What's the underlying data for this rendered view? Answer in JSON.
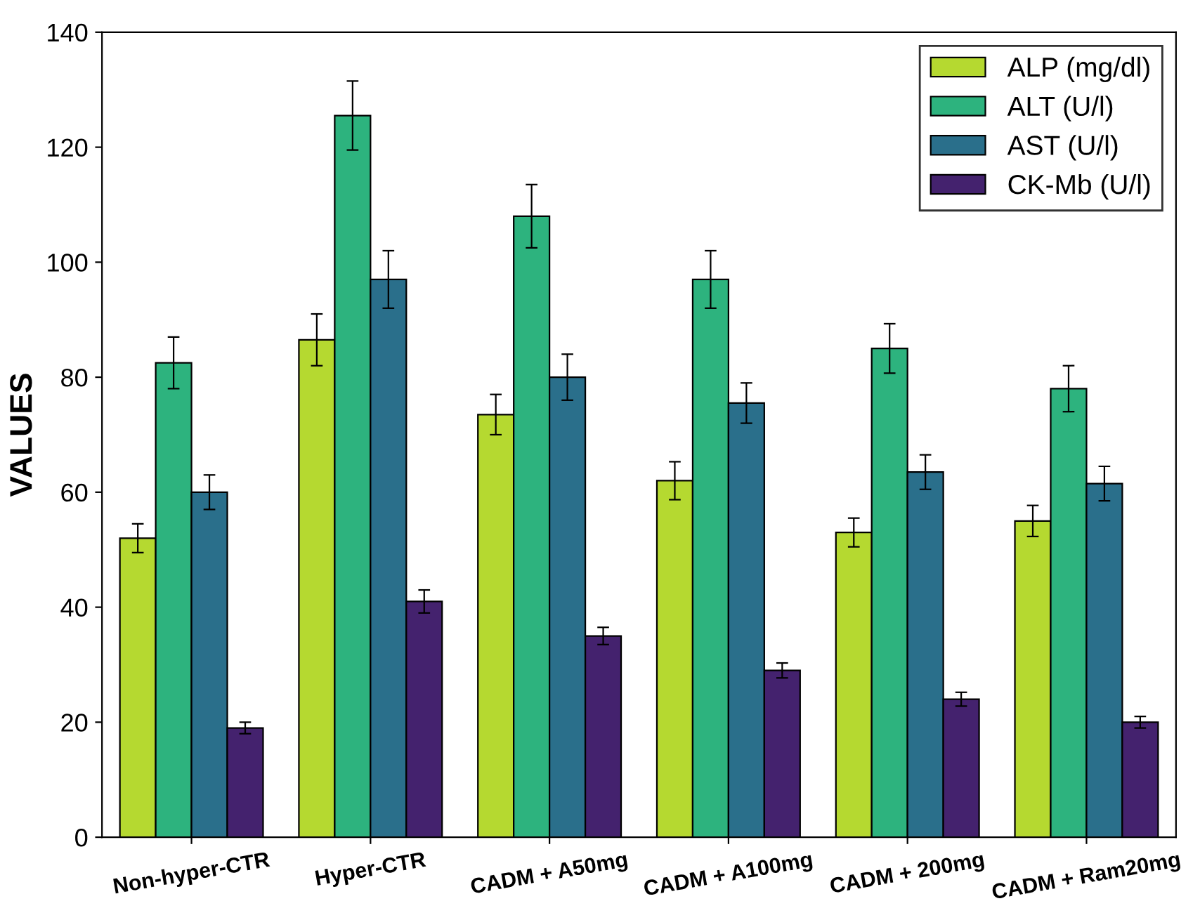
{
  "chart_data": {
    "type": "bar",
    "ylabel": "VALUES",
    "categories": [
      "Non-hyper-CTR",
      "Hyper-CTR",
      "CADM + A50mg",
      "CADM + A100mg",
      "CADM + 200mg",
      "CADM + Ram20mg"
    ],
    "series": [
      {
        "name": "ALP (mg/dl)",
        "color": "#b5d930",
        "values": [
          52,
          86.5,
          73.5,
          62,
          53,
          55
        ],
        "errors": [
          2.5,
          4.5,
          3.5,
          3.3,
          2.5,
          2.7
        ]
      },
      {
        "name": "ALT (U/l)",
        "color": "#2db37e",
        "values": [
          82.5,
          125.5,
          108,
          97,
          85,
          78
        ],
        "errors": [
          4.5,
          6,
          5.5,
          5,
          4.3,
          4
        ]
      },
      {
        "name": "AST (U/l)",
        "color": "#2a6f8b",
        "values": [
          60,
          97,
          80,
          75.5,
          63.5,
          61.5
        ],
        "errors": [
          3,
          5,
          4,
          3.5,
          3,
          3
        ]
      },
      {
        "name": "CK-Mb (U/l)",
        "color": "#44226e",
        "values": [
          19,
          41,
          35,
          29,
          24,
          20
        ],
        "errors": [
          1,
          2,
          1.5,
          1.3,
          1.2,
          1
        ]
      }
    ],
    "ylim": [
      0,
      140
    ],
    "yticks": [
      0,
      20,
      40,
      60,
      80,
      100,
      120,
      140
    ],
    "grid": false,
    "legend": "top right"
  }
}
